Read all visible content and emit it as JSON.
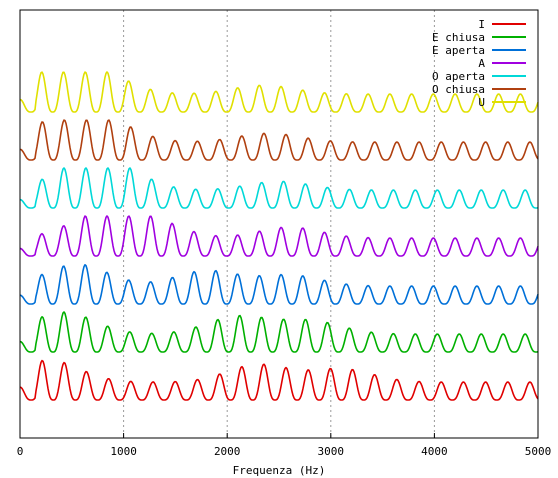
{
  "chart_data": {
    "type": "line",
    "title": "",
    "xlabel": "Frequenza (Hz)",
    "ylabel": "",
    "xlim": [
      0,
      5000
    ],
    "xticks": [
      0,
      1000,
      2000,
      3000,
      4000,
      5000
    ],
    "xtick_labels": [
      "0",
      "1000",
      "2000",
      "3000",
      "4000",
      "5000"
    ],
    "grid": "vertical dashed at each x tick",
    "legend_position": "top-right",
    "series": [
      {
        "name": "I",
        "color": "#e00000",
        "offset": 0,
        "f0": 214,
        "formants": [
          [
            280,
            1.0
          ],
          [
            2300,
            0.8
          ],
          [
            3100,
            0.6
          ]
        ],
        "amp": 1.0
      },
      {
        "name": "E chiusa",
        "color": "#00b000",
        "offset": 1,
        "f0": 212,
        "formants": [
          [
            420,
            1.0
          ],
          [
            2100,
            0.8
          ],
          [
            2800,
            0.6
          ]
        ],
        "amp": 1.0
      },
      {
        "name": "E aperta",
        "color": "#0070d8",
        "offset": 2,
        "f0": 210,
        "formants": [
          [
            550,
            1.0
          ],
          [
            1800,
            0.7
          ],
          [
            2600,
            0.5
          ]
        ],
        "amp": 1.0
      },
      {
        "name": "A",
        "color": "#a000e0",
        "offset": 3,
        "f0": 210,
        "formants": [
          [
            750,
            1.0
          ],
          [
            1250,
            0.8
          ],
          [
            2600,
            0.5
          ]
        ],
        "amp": 1.0
      },
      {
        "name": "O aperta",
        "color": "#00d8d8",
        "offset": 4,
        "f0": 212,
        "formants": [
          [
            600,
            1.0
          ],
          [
            900,
            0.9
          ],
          [
            2500,
            0.4
          ]
        ],
        "amp": 1.0
      },
      {
        "name": "O chiusa",
        "color": "#b04010",
        "offset": 5,
        "f0": 214,
        "formants": [
          [
            420,
            1.0
          ],
          [
            800,
            0.9
          ],
          [
            2400,
            0.4
          ]
        ],
        "amp": 1.0
      },
      {
        "name": "U",
        "color": "#e0e000",
        "offset": 6,
        "f0": 210,
        "formants": [
          [
            320,
            1.0
          ],
          [
            750,
            0.9
          ],
          [
            2350,
            0.4
          ]
        ],
        "amp": 1.0
      }
    ]
  }
}
